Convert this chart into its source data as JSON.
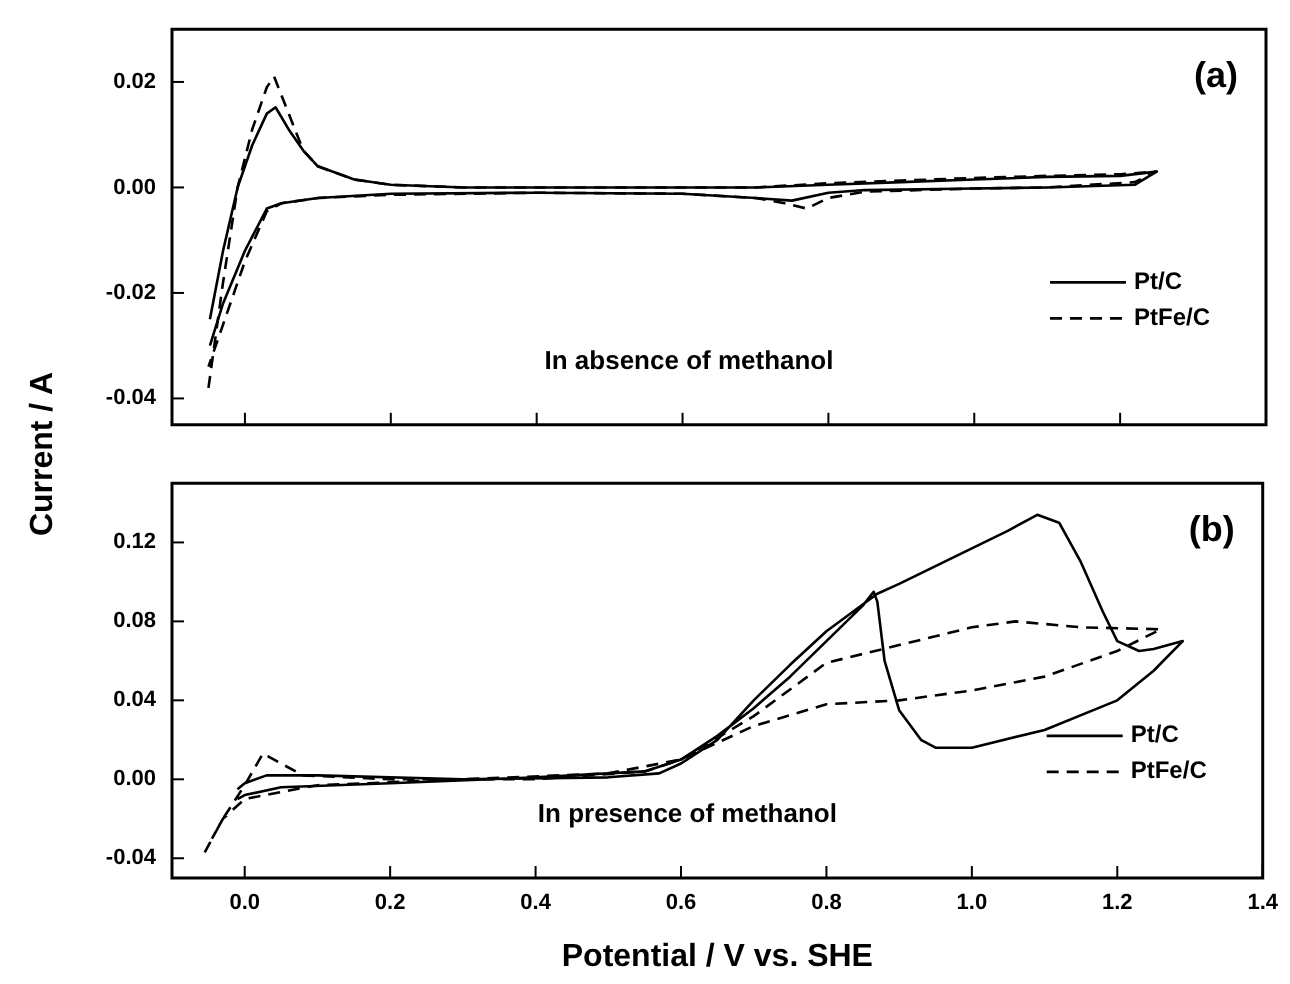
{
  "chart_data": [
    {
      "type": "line",
      "ylabel": "Current / A",
      "annotations": [
        "(a)",
        "In absence of methanol"
      ],
      "xlim": [
        -0.1,
        1.4
      ],
      "ylim": [
        -0.045,
        0.03
      ],
      "xticks": [
        {
          "value": 0,
          "label": null
        },
        {
          "value": 0.2,
          "label": null
        },
        {
          "value": 0.4,
          "label": null
        },
        {
          "value": 0.6,
          "label": null
        },
        {
          "value": 0.8,
          "label": null
        },
        {
          "value": 1.0,
          "label": null
        },
        {
          "value": 1.2,
          "label": null
        }
      ],
      "yticks": [
        {
          "value": -0.04,
          "label": "-0.04"
        },
        {
          "value": -0.02,
          "label": "-0.02"
        },
        {
          "value": 0,
          "label": "0.00"
        },
        {
          "value": 0.02,
          "label": "0.02"
        }
      ],
      "tick_labels": "y",
      "grid": false,
      "legend": "right",
      "marker": "none",
      "series": [
        {
          "name": "Pt/C",
          "color": "#000000",
          "line_style": "solid",
          "x": [
            -0.048,
            -0.03,
            -0.01,
            0.01,
            0.03,
            0.042,
            0.06,
            0.08,
            0.1,
            0.15,
            0.2,
            0.3,
            0.5,
            0.7,
            0.8,
            0.9,
            1.0,
            1.1,
            1.2,
            1.25,
            1.22,
            1.1,
            1.0,
            0.85,
            0.8,
            0.75,
            0.7,
            0.6,
            0.4,
            0.2,
            0.1,
            0.05,
            0.03,
            0.0,
            -0.03,
            -0.048
          ],
          "values": [
            -0.025,
            -0.012,
            0.0,
            0.008,
            0.014,
            0.0152,
            0.011,
            0.007,
            0.004,
            0.0015,
            0.0005,
            0.0,
            0.0,
            0.0,
            0.0005,
            0.001,
            0.0015,
            0.002,
            0.0022,
            0.003,
            0.0005,
            0.0,
            -0.0002,
            -0.0005,
            -0.001,
            -0.0025,
            -0.002,
            -0.0012,
            -0.001,
            -0.0012,
            -0.002,
            -0.003,
            -0.004,
            -0.012,
            -0.022,
            -0.03
          ]
        },
        {
          "name": "PtFe/C",
          "color": "#000000",
          "line_style": "dashed",
          "x": [
            -0.05,
            -0.03,
            -0.01,
            0.01,
            0.03,
            0.04,
            0.06,
            0.08,
            0.1,
            0.15,
            0.2,
            0.3,
            0.5,
            0.7,
            0.8,
            0.9,
            1.0,
            1.1,
            1.2,
            1.25,
            1.22,
            1.1,
            1.0,
            0.85,
            0.8,
            0.77,
            0.74,
            0.7,
            0.6,
            0.4,
            0.2,
            0.1,
            0.05,
            0.03,
            0.0,
            -0.03,
            -0.05
          ],
          "values": [
            -0.038,
            -0.018,
            0.0,
            0.011,
            0.019,
            0.021,
            0.014,
            0.007,
            0.004,
            0.0015,
            0.0005,
            0.0,
            0.0,
            0.0,
            0.0008,
            0.0013,
            0.0018,
            0.0022,
            0.0025,
            0.003,
            0.001,
            0.0,
            -0.0002,
            -0.0008,
            -0.002,
            -0.004,
            -0.003,
            -0.002,
            -0.0012,
            -0.001,
            -0.0014,
            -0.002,
            -0.003,
            -0.0045,
            -0.014,
            -0.026,
            -0.034
          ]
        }
      ]
    },
    {
      "type": "line",
      "xlabel": "Potential / V vs. SHE",
      "annotations": [
        "(b)",
        "In presence of methanol"
      ],
      "xlim": [
        -0.1,
        1.4
      ],
      "ylim": [
        -0.05,
        0.15
      ],
      "xticks": [
        {
          "value": 0,
          "label": "0.0"
        },
        {
          "value": 0.2,
          "label": "0.2"
        },
        {
          "value": 0.4,
          "label": "0.4"
        },
        {
          "value": 0.6,
          "label": "0.6"
        },
        {
          "value": 0.8,
          "label": "0.8"
        },
        {
          "value": 1.0,
          "label": "1.0"
        },
        {
          "value": 1.2,
          "label": "1.2"
        },
        {
          "value": 1.4,
          "label": "1.4"
        }
      ],
      "yticks": [
        {
          "value": -0.04,
          "label": "-0.04"
        },
        {
          "value": 0,
          "label": "0.00"
        },
        {
          "value": 0.04,
          "label": "0.04"
        },
        {
          "value": 0.08,
          "label": "0.08"
        },
        {
          "value": 0.12,
          "label": "0.12"
        }
      ],
      "grid": false,
      "legend": "right",
      "marker": "none",
      "series": [
        {
          "name": "Pt/C",
          "color": "#000000",
          "line_style": "solid",
          "x": [
            -0.01,
            0.0,
            0.03,
            0.1,
            0.3,
            0.5,
            0.57,
            0.6,
            0.65,
            0.7,
            0.75,
            0.8,
            0.87,
            0.9,
            1.0,
            1.05,
            1.09,
            1.12,
            1.15,
            1.18,
            1.2,
            1.23,
            1.25,
            1.29,
            1.25,
            1.2,
            1.1,
            1.0,
            0.95,
            0.93,
            0.9,
            0.88,
            0.87,
            0.865,
            0.85,
            0.8,
            0.75,
            0.7,
            0.65,
            0.6,
            0.55,
            0.4,
            0.2,
            0.05,
            0.0,
            -0.01
          ],
          "values": [
            -0.005,
            -0.002,
            0.002,
            0.002,
            0.0,
            0.001,
            0.003,
            0.008,
            0.02,
            0.04,
            0.058,
            0.075,
            0.094,
            0.099,
            0.117,
            0.126,
            0.134,
            0.13,
            0.11,
            0.085,
            0.07,
            0.065,
            0.066,
            0.07,
            0.055,
            0.04,
            0.025,
            0.016,
            0.016,
            0.02,
            0.035,
            0.06,
            0.09,
            0.095,
            0.088,
            0.07,
            0.052,
            0.036,
            0.022,
            0.01,
            0.004,
            0.001,
            -0.002,
            -0.004,
            -0.008,
            -0.01
          ]
        },
        {
          "name": "PtFe/C",
          "color": "#000000",
          "line_style": "dashed",
          "x": [
            -0.055,
            -0.03,
            0.0,
            0.025,
            0.05,
            0.08,
            0.2,
            0.4,
            0.55,
            0.6,
            0.7,
            0.8,
            0.9,
            1.0,
            1.06,
            1.15,
            1.26,
            1.2,
            1.1,
            1.0,
            0.9,
            0.8,
            0.7,
            0.6,
            0.5,
            0.3,
            0.1,
            0.0,
            -0.03,
            -0.045
          ],
          "values": [
            -0.037,
            -0.02,
            -0.003,
            0.013,
            0.008,
            0.002,
            0.0,
            0.0,
            0.004,
            0.01,
            0.032,
            0.059,
            0.068,
            0.077,
            0.08,
            0.077,
            0.076,
            0.065,
            0.052,
            0.045,
            0.04,
            0.038,
            0.027,
            0.01,
            0.003,
            0.0,
            -0.003,
            -0.01,
            -0.02,
            -0.03
          ]
        }
      ]
    }
  ]
}
